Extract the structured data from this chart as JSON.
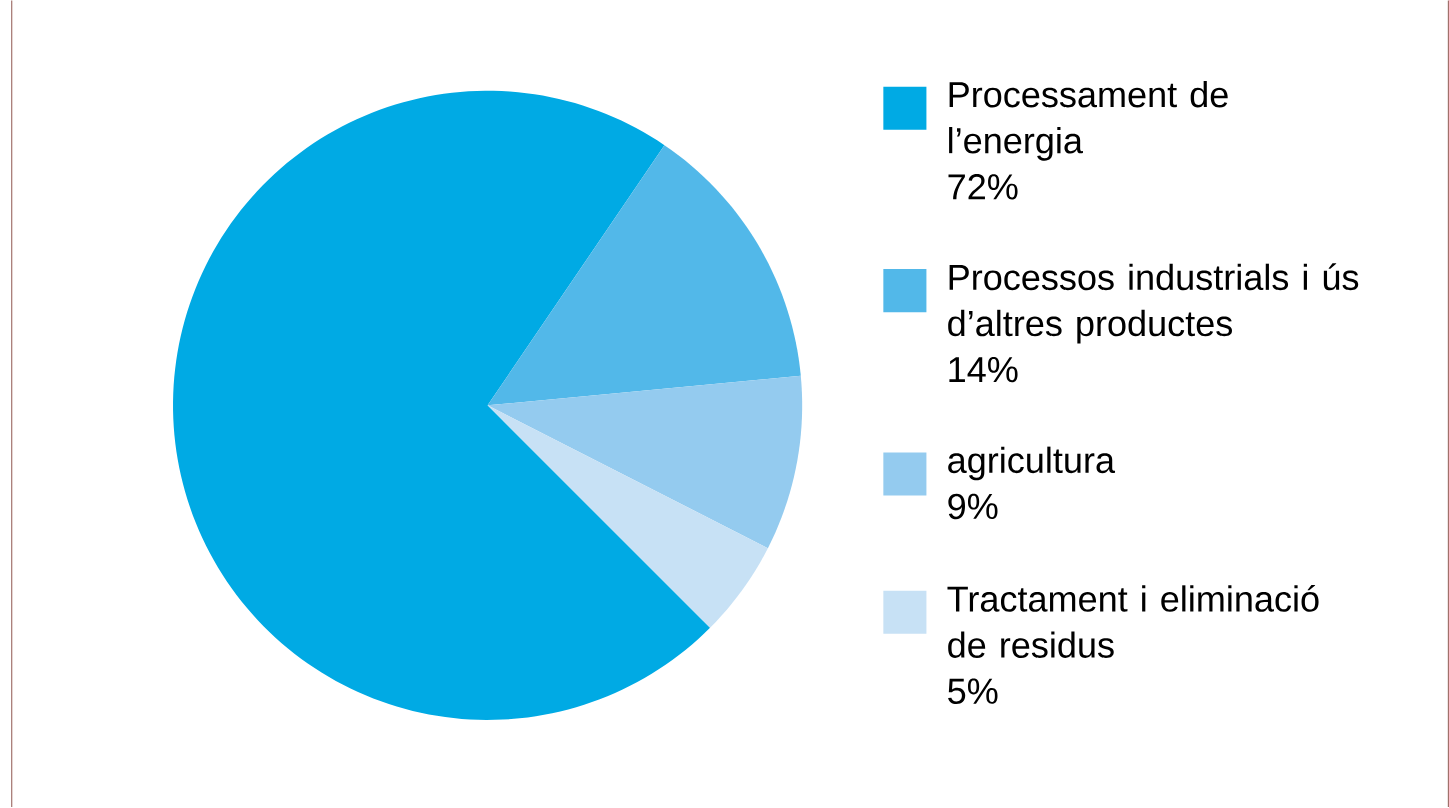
{
  "chart_data": {
    "type": "pie",
    "categories": [
      "Processament de l’energia",
      "Processos industrials i ús d’altres productes",
      "agricultura",
      "Tractament i eliminació de residus"
    ],
    "values": [
      72,
      14,
      9,
      5
    ],
    "value_labels": [
      "72%",
      "14%",
      "9%",
      "5%"
    ],
    "colors": [
      "#00aae4",
      "#52b8e9",
      "#94cbef",
      "#c7e1f5"
    ],
    "legend": "right"
  }
}
